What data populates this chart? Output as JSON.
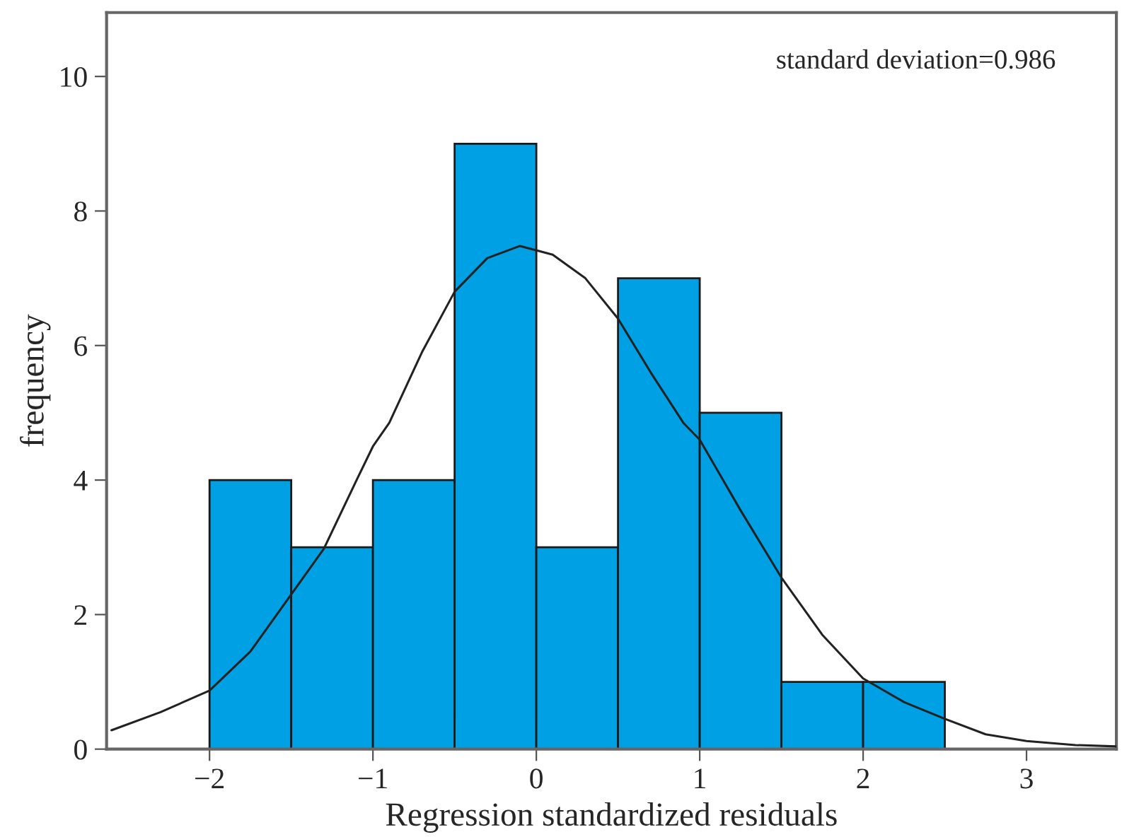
{
  "chart_data": {
    "type": "histogram",
    "xlabel": "Regression standardized residuals",
    "ylabel": "frequency",
    "bins": [
      -2,
      -1.5,
      -1,
      -0.5,
      0,
      0.5,
      1,
      1.5,
      2,
      2.5
    ],
    "values": [
      4,
      3,
      4,
      9,
      3,
      7,
      5,
      1,
      1
    ],
    "color": "#00a0e4",
    "series": [
      {
        "type": "line",
        "color": "#222222",
        "x": [
          -2.6,
          -2.3,
          -2.0,
          -1.75,
          -1.5,
          -1.3,
          -1.1,
          -1.0,
          -0.9,
          -0.7,
          -0.5,
          -0.3,
          -0.1,
          0.1,
          0.3,
          0.5,
          0.7,
          0.9,
          1.0,
          1.25,
          1.5,
          1.75,
          2.0,
          2.25,
          2.5,
          2.75,
          3.0,
          3.3,
          3.55
        ],
        "values": [
          0.28,
          0.55,
          0.87,
          1.45,
          2.3,
          2.98,
          4.0,
          4.5,
          4.85,
          5.9,
          6.8,
          7.3,
          7.48,
          7.35,
          7.0,
          6.4,
          5.6,
          4.85,
          4.6,
          3.55,
          2.55,
          1.7,
          1.05,
          0.7,
          0.45,
          0.22,
          0.12,
          0.06,
          0.04
        ]
      }
    ],
    "annotations": [
      "standard deviation=0.986"
    ],
    "xlim": [
      -2.63,
      3.55
    ],
    "ylim": [
      0,
      10.95
    ],
    "xticks": [
      {
        "value": -2,
        "label": "−2"
      },
      {
        "value": -1,
        "label": "−1"
      },
      0,
      1,
      2,
      3
    ],
    "yticks": [
      0,
      2,
      4,
      6,
      8,
      10
    ],
    "grid": false,
    "legend": false
  }
}
